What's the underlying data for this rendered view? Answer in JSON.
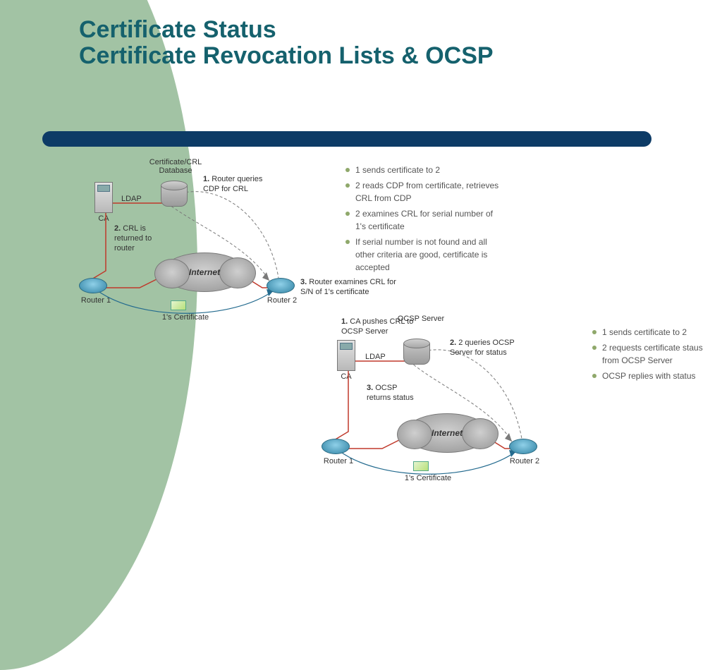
{
  "slide": {
    "title_line1": "Certificate Status",
    "title_line2": "Certificate Revocation Lists & OCSP",
    "title_color": "#15616d",
    "title_fontsize": 34,
    "sidebar_color": "#a2c3a4",
    "accent_bar_color": "#0d3b66",
    "background_color": "#ffffff"
  },
  "crl": {
    "bullets": [
      "1 sends certificate to 2",
      "2 reads CDP from certificate, retrieves CRL from CDP",
      "2 examines CRL for serial number of 1's certificate",
      "If serial number is not found and all other criteria are good, certificate is accepted"
    ],
    "bullet_color": "#8fa86b",
    "db_label": "Certificate/CRL Database",
    "ca_label": "CA",
    "ldap_label": "LDAP",
    "router1_label": "Router 1",
    "router2_label": "Router 2",
    "cloud_label": "Internet",
    "cert_label": "1's Certificate",
    "step1_num": "1.",
    "step1_text": "Router queries CDP for CRL",
    "step2_num": "2.",
    "step2_text": "CRL is returned to router",
    "step3_num": "3.",
    "step3_text": "Router examines CRL for S/N of 1's certificate",
    "line_color": "#c0392b",
    "dash_color": "#7a7a7a"
  },
  "ocsp": {
    "bullets": [
      "1 sends certificate to 2",
      "2 requests certificate staus from OCSP Server",
      "OCSP replies with status"
    ],
    "bullet_color": "#8fa86b",
    "server_label": "OCSP Server",
    "ca_label": "CA",
    "ldap_label": "LDAP",
    "router1_label": "Router 1",
    "router2_label": "Router 2",
    "cloud_label": "Internet",
    "cert_label": "1's Certificate",
    "step1_num": "1.",
    "step1_text": "CA pushes CRL to OCSP Server",
    "step2_num": "2.",
    "step2_text": "2 queries OCSP Server for status",
    "step3_num": "3.",
    "step3_text": "OCSP returns status",
    "line_color": "#c0392b",
    "dash_color": "#7a7a7a"
  }
}
